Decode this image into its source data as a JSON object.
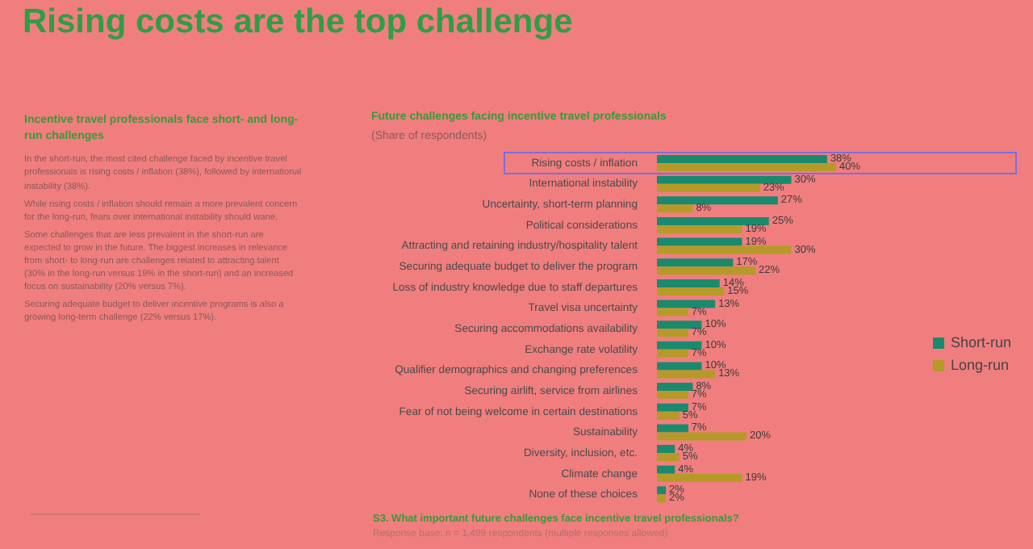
{
  "chart_data": {
    "type": "bar",
    "orientation": "horizontal",
    "title": "Rising costs are the top challenge",
    "subtitle": "Future challenges facing incentive travel professionals",
    "categories": [
      "Rising costs / inflation",
      "International instability",
      "Uncertainty, short-term planning",
      "Political considerations",
      "Attracting and retaining industry/hospitality talent",
      "Securing adequate budget to deliver the program",
      "Loss of industry knowledge due to staff departures",
      "Travel visa uncertainty",
      "Securing accommodations availability",
      "Exchange rate volatility",
      "Qualifier demographics and changing preferences",
      "Securing airlift, service from airlines",
      "Fear of not being welcome in certain destinations",
      "Sustainability",
      "Diversity, inclusion, etc.",
      "Climate change",
      "None of these choices"
    ],
    "series": [
      {
        "name": "Short-run",
        "color": "#1a8a6e",
        "values": [
          38,
          30,
          27,
          25,
          19,
          17,
          14,
          13,
          10,
          10,
          10,
          8,
          7,
          7,
          4,
          4,
          2
        ],
        "value_labels": [
          "38%",
          "30%",
          "27%",
          "25%",
          "19%",
          "17%",
          "14%",
          "13%",
          "10%",
          "10%",
          "10%",
          "8%",
          "7%",
          "7%",
          "4%",
          "4%",
          "2%"
        ]
      },
      {
        "name": "Long-run",
        "color": "#b59a2a",
        "values": [
          40,
          23,
          8,
          19,
          30,
          22,
          15,
          7,
          7,
          7,
          13,
          7,
          5,
          20,
          5,
          19,
          2
        ],
        "value_labels": [
          "40%",
          "23%",
          "8%",
          "19%",
          "30%",
          "22%",
          "15%",
          "7%",
          "7%",
          "7%",
          "13%",
          "7%",
          "5%",
          "20%",
          "5%",
          "19%",
          "2%"
        ]
      }
    ],
    "legend": "right",
    "annotations": [
      "Incentive travel professionals face short- and long-run challenges",
      "In the short-run, the most cited challenge faced by incentive travel professionals is rising costs / inflation (38%), followed by international instability (38%).",
      "While rising costs / inflation should remain a more prevalent concern for the long-run, fears over international instability should wane.",
      "Some challenges that are less prevalent in the short-run are expected to grow in the future. The biggest increases in relevance from short- to long-run are challenges related to attracting talent (30% in the long-run versus 19% in the short-run) and an increased focus on sustainability (20% versus 7%).",
      "Securing adequate budget to deliver incentive programs is also a growing long-term challenge (22% versus 17%).",
      "(Share of respondents)",
      "S3. What important future challenges face incentive travel professionals?",
      "Response base: n = 1,499 respondents (multiple responses allowed)"
    ]
  }
}
